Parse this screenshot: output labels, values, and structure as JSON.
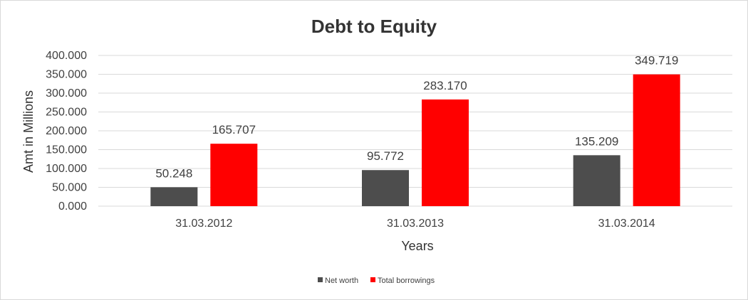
{
  "chart_data": {
    "type": "bar",
    "title": "Debt to Equity",
    "xlabel": "Years",
    "ylabel": "Amt in Millions",
    "categories": [
      "31.03.2012",
      "31.03.2013",
      "31.03.2014"
    ],
    "series": [
      {
        "name": "Net worth",
        "color": "#4d4d4d",
        "values": [
          50.248,
          95.772,
          135.209
        ],
        "labels": [
          "50.248",
          "95.772",
          "135.209"
        ]
      },
      {
        "name": "Total borrowings",
        "color": "#ff0000",
        "values": [
          165.707,
          283.17,
          349.719
        ],
        "labels": [
          "165.707",
          "283.170",
          "349.719"
        ]
      }
    ],
    "ylim": [
      0,
      400
    ],
    "yticks": [
      0,
      50,
      100,
      150,
      200,
      250,
      300,
      350,
      400
    ],
    "ytick_labels": [
      "0.000",
      "50.000",
      "100.000",
      "150.000",
      "200.000",
      "250.000",
      "300.000",
      "350.000",
      "400.000"
    ],
    "grid": true,
    "legend_position": "bottom"
  }
}
